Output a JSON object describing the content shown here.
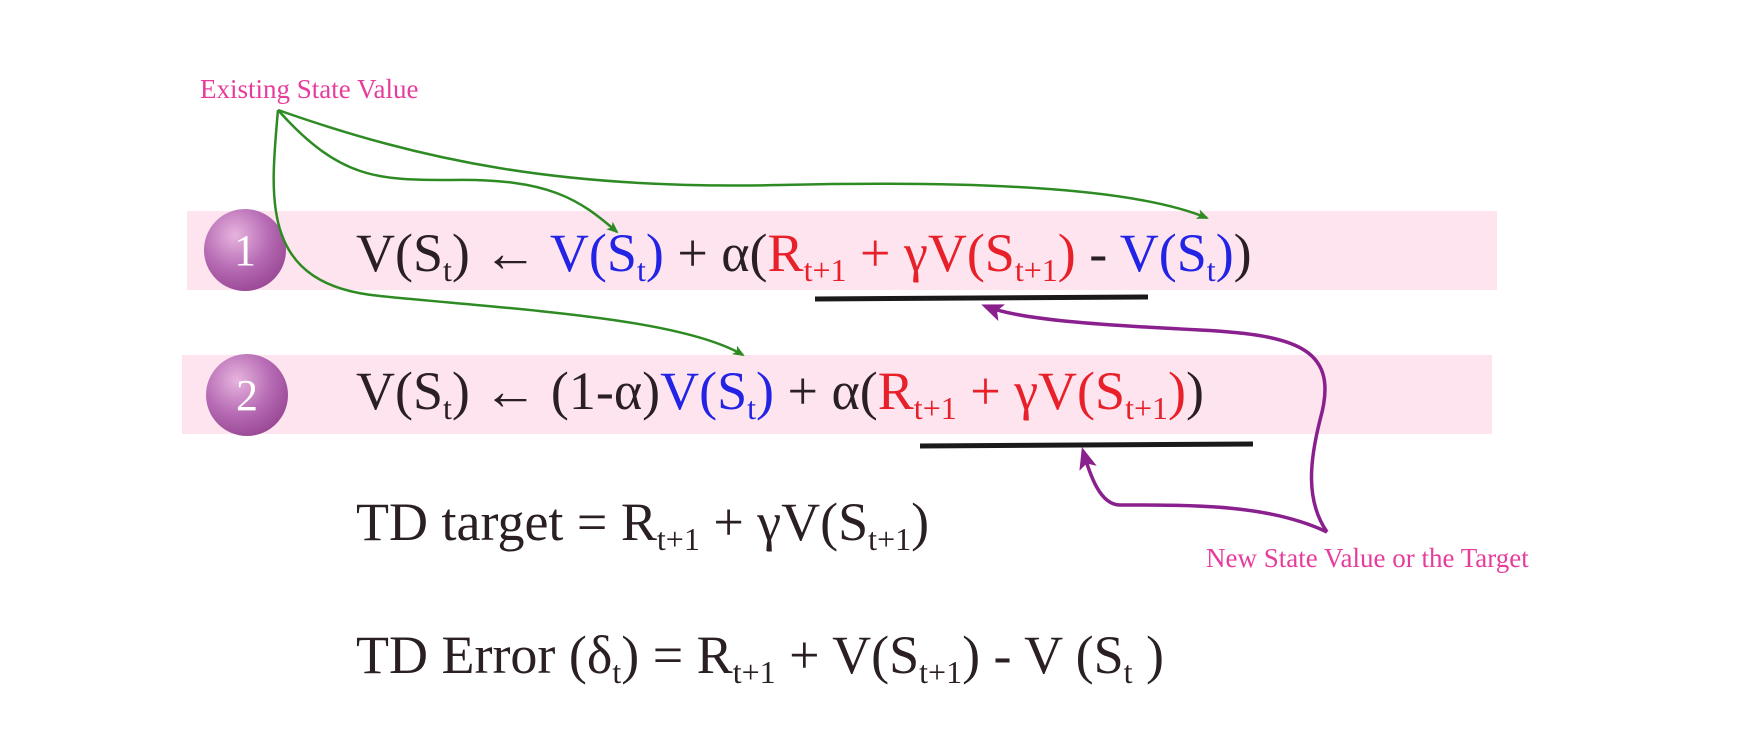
{
  "annotations": {
    "existing": "Existing State Value",
    "target": "New State Value or the Target"
  },
  "badges": {
    "one": "1",
    "two": "2"
  },
  "eq1": {
    "lhs": "V(S",
    "lhs_sub": "t",
    "arrow": ") ← ",
    "v1": "V(S",
    "v1_sub": "t",
    "v1_close": ")",
    "plus_alpha": " + α(",
    "r": "R",
    "r_sub": "t+1",
    "gamma_v": " + γV(S",
    "s_sub": "t+1",
    "s_close": ")",
    "minus": " - ",
    "v2": "V(S",
    "v2_sub": "t",
    "v2_close": ")",
    "close": ")"
  },
  "eq2": {
    "lhs": "V(S",
    "lhs_sub": "t",
    "arrow": ") ← ",
    "one_minus": "(1-α)",
    "v": "V(S",
    "v_sub": "t",
    "v_close": ")",
    "plus_alpha": " + α(",
    "r": "R",
    "r_sub": "t+1",
    "gamma_v": " + γV(S",
    "s_sub": "t+1",
    "s_close": ")",
    "close": ")"
  },
  "eq3": {
    "text": "TD target = R",
    "r_sub": "t+1",
    "mid": " + γV(S",
    "s_sub": "t+1",
    "close": ")"
  },
  "eq4": {
    "text": "TD Error (δ",
    "delta_sub": "t",
    "mid": ") = R",
    "r_sub": "t+1",
    "mid2": " + V(S",
    "s_sub": "t+1",
    "mid3": ") -  V (S",
    "st_sub": "t",
    "close": " )"
  },
  "colors": {
    "band": "#fde4ee",
    "badge": "#a9539f",
    "blue": "#2323e6",
    "red": "#e8202a",
    "green_arrow": "#2e8b24",
    "purple_arrow": "#8a1f8e",
    "annotation": "#e63d9c"
  }
}
